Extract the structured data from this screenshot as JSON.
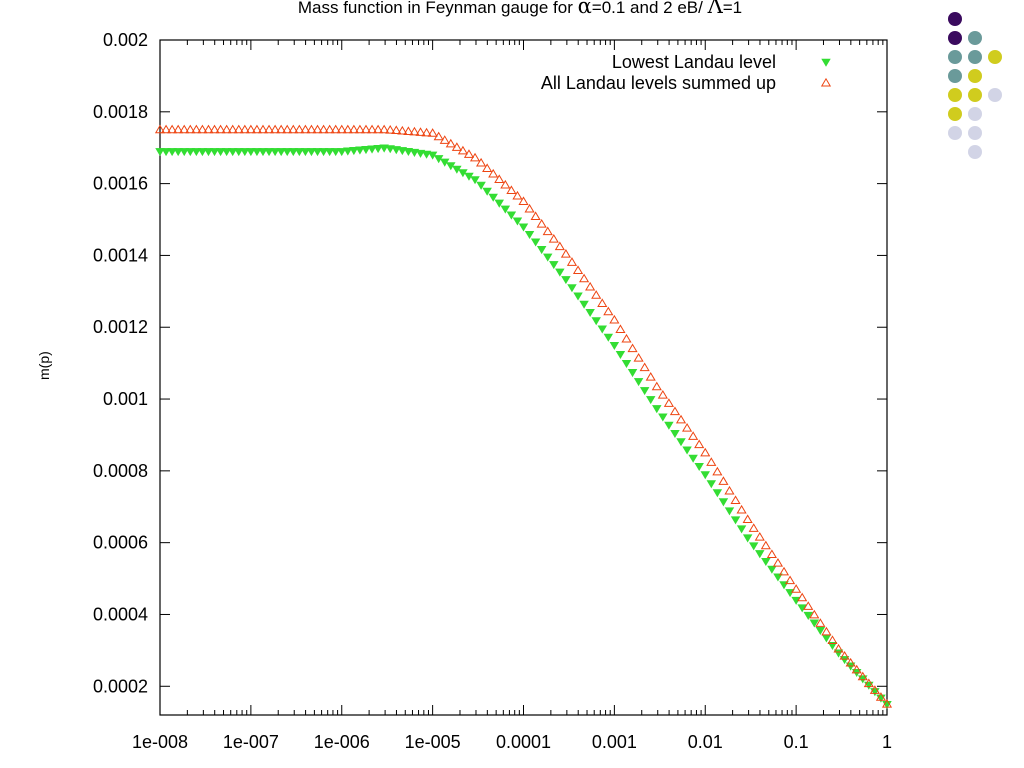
{
  "chart_data": {
    "type": "scatter",
    "title_parts": [
      "Mass function in Feynman gauge for ",
      "α",
      "=0.1 and 2 eB/ ",
      "Λ",
      "=1"
    ],
    "xlabel": "",
    "ylabel": "m(p)",
    "x_scale": "log",
    "xlim": [
      1e-08,
      1
    ],
    "ylim": [
      0.00012,
      0.002
    ],
    "x_ticks": [
      1e-08,
      1e-07,
      1e-06,
      1e-05,
      0.0001,
      0.001,
      0.01,
      0.1,
      1
    ],
    "x_tick_labels": [
      "1e-008",
      "1e-007",
      "1e-006",
      "1e-005",
      "0.0001",
      "0.001",
      "0.01",
      "0.1",
      "1"
    ],
    "y_ticks": [
      0.0002,
      0.0004,
      0.0006,
      0.0008,
      0.001,
      0.0012,
      0.0014,
      0.0016,
      0.0018,
      0.002
    ],
    "y_tick_labels": [
      "0.0002",
      "0.0004",
      "0.0006",
      "0.0008",
      "0.001",
      "0.0012",
      "0.0014",
      "0.0016",
      "0.0018",
      "0.002"
    ],
    "legend_position": "top-right",
    "series": [
      {
        "name": "Lowest Landau level",
        "marker": "filled-down-triangle",
        "color": "#33dd33",
        "x": [
          1e-08,
          1e-07,
          1e-06,
          3e-06,
          1e-05,
          3e-05,
          0.0001,
          0.0003,
          0.001,
          0.003,
          0.01,
          0.03,
          0.1,
          0.3,
          1
        ],
        "y": [
          0.00169,
          0.00169,
          0.00169,
          0.0017,
          0.00168,
          0.00161,
          0.00148,
          0.00133,
          0.00115,
          0.00097,
          0.00079,
          0.00061,
          0.00044,
          0.00029,
          0.00015
        ]
      },
      {
        "name": "All Landau levels summed up",
        "marker": "open-up-triangle",
        "color": "#ee4411",
        "x": [
          1e-08,
          1e-07,
          1e-06,
          3e-06,
          1e-05,
          3e-05,
          0.0001,
          0.0003,
          0.001,
          0.003,
          0.01,
          0.03,
          0.1,
          0.3,
          1
        ],
        "y": [
          0.00175,
          0.00175,
          0.00175,
          0.00175,
          0.00174,
          0.00167,
          0.00155,
          0.0014,
          0.00122,
          0.00103,
          0.00085,
          0.00066,
          0.00047,
          0.0003,
          0.00015
        ]
      }
    ]
  },
  "decor": {
    "dot_colors": {
      "purple": "#3a0a5e",
      "teal": "#6a9a9a",
      "yellow": "#d0cc1e",
      "lavender": "#d2d4e6"
    }
  }
}
